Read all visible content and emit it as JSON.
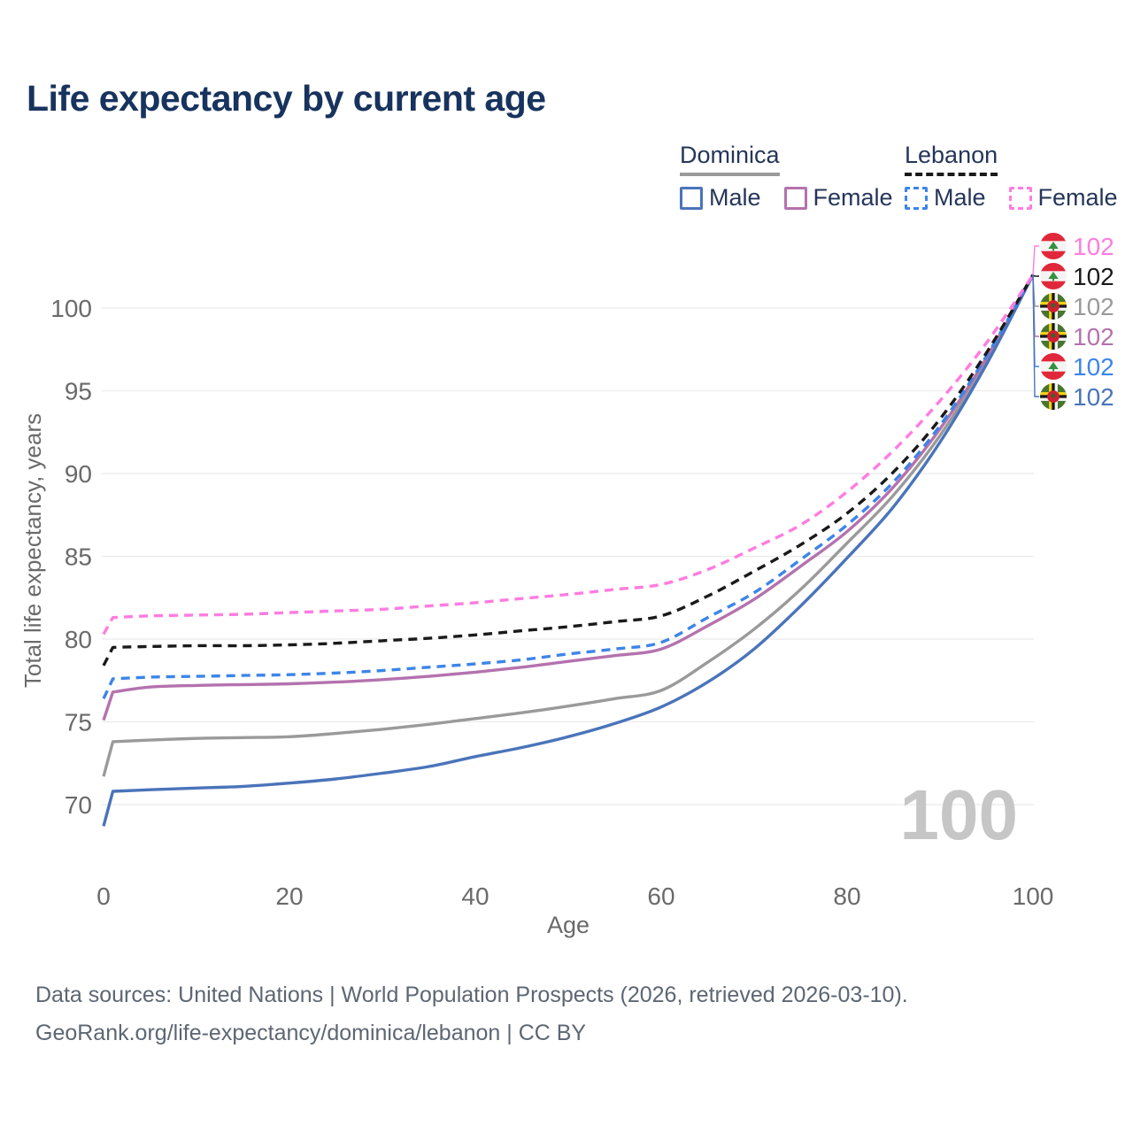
{
  "chart_data": {
    "type": "line",
    "title": "Life expectancy by current age",
    "xlabel": "Age",
    "ylabel": "Total life expectancy, years",
    "xlim": [
      0,
      100
    ],
    "ylim": [
      68,
      103
    ],
    "x_ticks": [
      0,
      20,
      40,
      60,
      80,
      100
    ],
    "y_ticks": [
      70,
      75,
      80,
      85,
      90,
      95,
      100
    ],
    "grid": "horizontal-only",
    "legend_position": "top-right",
    "watermark": "100",
    "x": [
      0,
      1,
      5,
      10,
      15,
      20,
      25,
      30,
      35,
      40,
      45,
      50,
      55,
      60,
      65,
      70,
      75,
      80,
      85,
      90,
      95,
      100
    ],
    "series": [
      {
        "name": "Lebanon Female",
        "country": "Lebanon",
        "sex": "Female",
        "color": "#ff7ce0",
        "dash": true,
        "end_label": "102",
        "values": [
          80.3,
          81.3,
          81.4,
          81.45,
          81.5,
          81.6,
          81.7,
          81.8,
          82.0,
          82.2,
          82.45,
          82.7,
          83.0,
          83.3,
          84.2,
          85.5,
          86.9,
          88.9,
          91.4,
          94.4,
          97.9,
          102
        ]
      },
      {
        "name": "Lebanon Both sexes",
        "country": "Lebanon",
        "sex": "Both",
        "color": "#1a1a1a",
        "dash": true,
        "end_label": "102",
        "values": [
          78.4,
          79.5,
          79.55,
          79.6,
          79.6,
          79.65,
          79.75,
          79.9,
          80.05,
          80.25,
          80.5,
          80.75,
          81.05,
          81.4,
          82.6,
          84.1,
          85.7,
          87.6,
          90.1,
          93.3,
          97.3,
          102
        ]
      },
      {
        "name": "Dominica Both sexes",
        "country": "Dominica",
        "sex": "Both",
        "color": "#9a9a9a",
        "dash": false,
        "end_label": "102",
        "values": [
          71.7,
          73.8,
          73.9,
          74.0,
          74.05,
          74.1,
          74.3,
          74.55,
          74.85,
          75.2,
          75.55,
          75.95,
          76.4,
          76.9,
          78.6,
          80.6,
          83.0,
          85.8,
          88.7,
          92.3,
          96.8,
          102
        ]
      },
      {
        "name": "Dominica Female",
        "country": "Dominica",
        "sex": "Female",
        "color": "#b472ae",
        "dash": false,
        "end_label": "102",
        "values": [
          75.1,
          76.8,
          77.1,
          77.2,
          77.25,
          77.3,
          77.4,
          77.55,
          77.75,
          78.0,
          78.3,
          78.65,
          79.0,
          79.4,
          80.8,
          82.4,
          84.4,
          86.5,
          89.2,
          92.7,
          97.0,
          102
        ]
      },
      {
        "name": "Lebanon Male",
        "country": "Lebanon",
        "sex": "Male",
        "color": "#3d85e8",
        "dash": true,
        "end_label": "102",
        "values": [
          76.4,
          77.6,
          77.7,
          77.75,
          77.8,
          77.85,
          77.95,
          78.1,
          78.3,
          78.5,
          78.75,
          79.1,
          79.4,
          79.8,
          81.3,
          82.8,
          84.8,
          86.9,
          89.5,
          92.9,
          97.1,
          102
        ]
      },
      {
        "name": "Dominica Male",
        "country": "Dominica",
        "sex": "Male",
        "color": "#4a74ba",
        "dash": false,
        "end_label": "102",
        "values": [
          68.7,
          70.8,
          70.9,
          71.0,
          71.1,
          71.3,
          71.55,
          71.9,
          72.3,
          72.9,
          73.45,
          74.1,
          74.9,
          75.9,
          77.4,
          79.4,
          82.0,
          84.9,
          88.0,
          91.9,
          96.6,
          102
        ]
      }
    ]
  },
  "legend": {
    "groups": [
      {
        "country": "Dominica",
        "line_style": "solid",
        "line_color": "#9a9a9a",
        "items": [
          {
            "label": "Male",
            "color": "#4a74ba",
            "dash": false
          },
          {
            "label": "Female",
            "color": "#b472ae",
            "dash": false
          }
        ]
      },
      {
        "country": "Lebanon",
        "line_style": "dashed",
        "line_color": "#1a1a1a",
        "items": [
          {
            "label": "Male",
            "color": "#3d85e8",
            "dash": true
          },
          {
            "label": "Female",
            "color": "#ff7ce0",
            "dash": true
          }
        ]
      }
    ]
  },
  "footer": {
    "line1": "Data sources: United Nations | World Population Prospects (2026, retrieved 2026-03-10).",
    "line2": "GeoRank.org/life-expectancy/dominica/lebanon | CC BY"
  }
}
